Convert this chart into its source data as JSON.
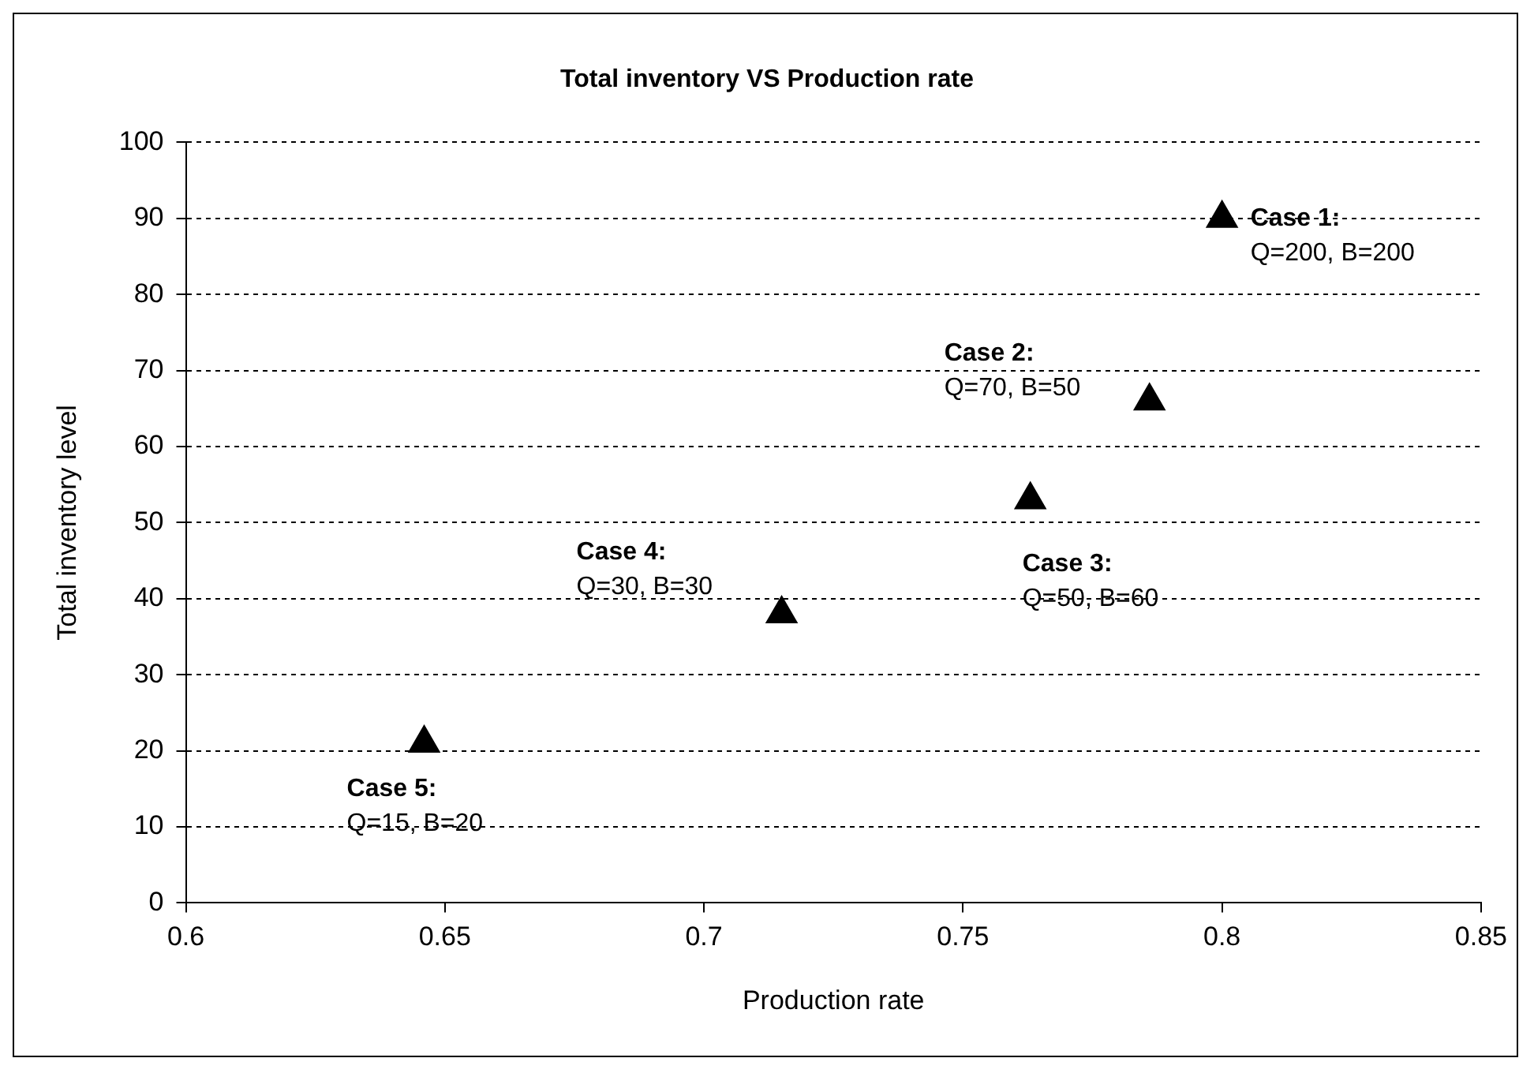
{
  "chart_data": {
    "type": "scatter",
    "title": "Total inventory VS Production rate",
    "xlabel": "Production rate",
    "ylabel": "Total inventory level",
    "x": [
      0.8,
      0.786,
      0.763,
      0.715,
      0.646
    ],
    "values": [
      90,
      66,
      53,
      38,
      21
    ],
    "color": "#000000",
    "marker": "triangle",
    "legend": false,
    "grid": "y",
    "xlim": [
      0.6,
      0.85
    ],
    "xticks": [
      0.6,
      0.65,
      0.7,
      0.75,
      0.8,
      0.85
    ],
    "ylim": [
      0,
      100
    ],
    "yticks": [
      0,
      10,
      20,
      30,
      40,
      50,
      60,
      70,
      80,
      90,
      100
    ],
    "annotations": [
      {
        "text": "Case 1:\nQ=200, B=200",
        "x": 0.8,
        "y": 90
      },
      {
        "text": "Case 2:\nQ=70, B=50",
        "x": 0.786,
        "y": 66
      },
      {
        "text": "Case 3:\nQ=50, B=60",
        "x": 0.763,
        "y": 53
      },
      {
        "text": "Case 4:\nQ=30, B=30",
        "x": 0.715,
        "y": 38
      },
      {
        "text": "Case 5:\nQ=15, B=20",
        "x": 0.646,
        "y": 21
      }
    ]
  }
}
